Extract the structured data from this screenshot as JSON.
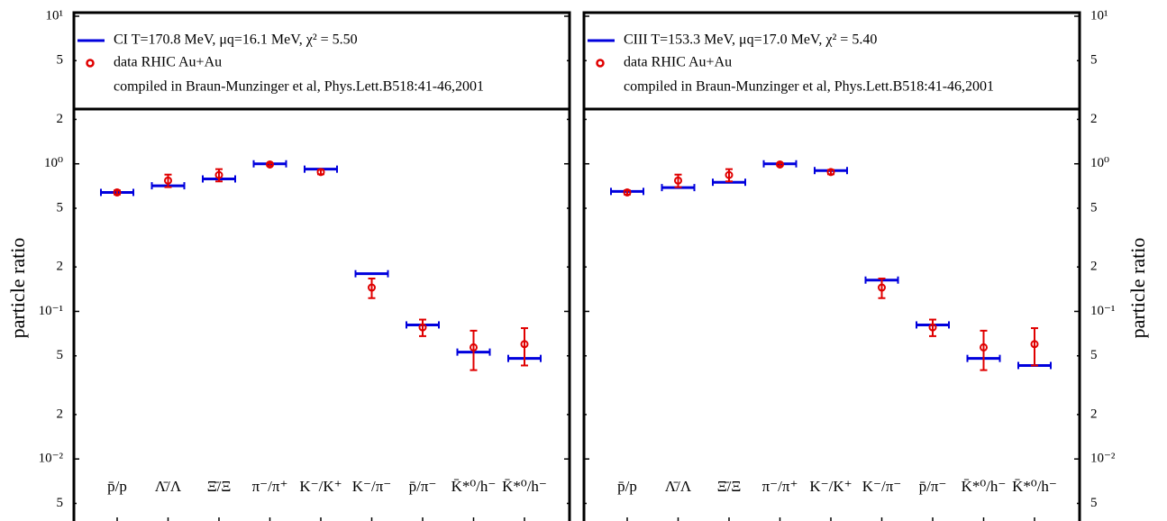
{
  "chart_data": [
    {
      "type": "errorbar",
      "categories": [
        "p̄/p",
        "Λ̄/Λ",
        "Ξ̄/Ξ",
        "π⁻/π⁺",
        "K⁻/K⁺",
        "K⁻/π⁻",
        "p̄/π⁻",
        "K̄*⁰/h⁻",
        "K̄*⁰/h⁻"
      ],
      "series": [
        {
          "name": "CI T=170.8 MeV, μq=16.1 MeV, χ² = 5.50",
          "color": "#0000dd",
          "values": [
            0.64,
            0.71,
            0.79,
            1.0,
            0.92,
            0.18,
            0.081,
            0.053,
            0.048
          ]
        },
        {
          "name": "data RHIC Au+Au",
          "color": "#e00000",
          "values": [
            0.64,
            0.77,
            0.84,
            0.99,
            0.88,
            0.145,
            0.078,
            0.057,
            0.06
          ],
          "errors": [
            0.02,
            0.075,
            0.08,
            0.02,
            0.03,
            0.022,
            0.01,
            0.017,
            0.017
          ]
        }
      ],
      "annotation": "compiled in Braun-Munzinger et al, Phys.Lett.B518:41-46,2001",
      "ylabel": "particle ratio",
      "yaxis_position": "left",
      "log_scale": true,
      "ylim": [
        0.0038,
        10
      ],
      "yticks": [
        {
          "value": 10,
          "label": "10¹"
        },
        5,
        2,
        {
          "value": 1,
          "label": "10⁰"
        },
        {
          "value": 0.5,
          "label": "5"
        },
        {
          "value": 0.2,
          "label": "2"
        },
        {
          "value": 0.1,
          "label": "10⁻¹"
        },
        {
          "value": 0.05,
          "label": "5"
        },
        {
          "value": 0.02,
          "label": "2"
        },
        {
          "value": 0.01,
          "label": "10⁻²"
        },
        {
          "value": 0.005,
          "label": "5"
        }
      ]
    },
    {
      "type": "errorbar",
      "categories": [
        "p̄/p",
        "Λ̄/Λ",
        "Ξ̄/Ξ",
        "π⁻/π⁺",
        "K⁻/K⁺",
        "K⁻/π⁻",
        "p̄/π⁻",
        "K̄*⁰/h⁻",
        "K̄*⁰/h⁻"
      ],
      "series": [
        {
          "name": "CIII T=153.3 MeV, μq=17.0 MeV, χ² = 5.40",
          "color": "#0000dd",
          "values": [
            0.65,
            0.69,
            0.75,
            1.0,
            0.9,
            0.163,
            0.081,
            0.048,
            0.043
          ]
        },
        {
          "name": "data RHIC Au+Au",
          "color": "#e00000",
          "values": [
            0.64,
            0.77,
            0.84,
            0.99,
            0.88,
            0.145,
            0.078,
            0.057,
            0.06
          ],
          "errors": [
            0.02,
            0.075,
            0.08,
            0.02,
            0.03,
            0.022,
            0.01,
            0.017,
            0.017
          ]
        }
      ],
      "annotation": "compiled in Braun-Munzinger et al, Phys.Lett.B518:41-46,2001",
      "ylabel": "particle ratio",
      "yaxis_position": "right",
      "log_scale": true,
      "ylim": [
        0.0038,
        10
      ],
      "yticks": [
        {
          "value": 10,
          "label": "10¹"
        },
        5,
        2,
        {
          "value": 1,
          "label": "10⁰"
        },
        {
          "value": 0.5,
          "label": "5"
        },
        {
          "value": 0.2,
          "label": "2"
        },
        {
          "value": 0.1,
          "label": "10⁻¹"
        },
        {
          "value": 0.05,
          "label": "5"
        },
        {
          "value": 0.02,
          "label": "2"
        },
        {
          "value": 0.01,
          "label": "10⁻²"
        },
        {
          "value": 0.005,
          "label": "5"
        }
      ]
    }
  ]
}
